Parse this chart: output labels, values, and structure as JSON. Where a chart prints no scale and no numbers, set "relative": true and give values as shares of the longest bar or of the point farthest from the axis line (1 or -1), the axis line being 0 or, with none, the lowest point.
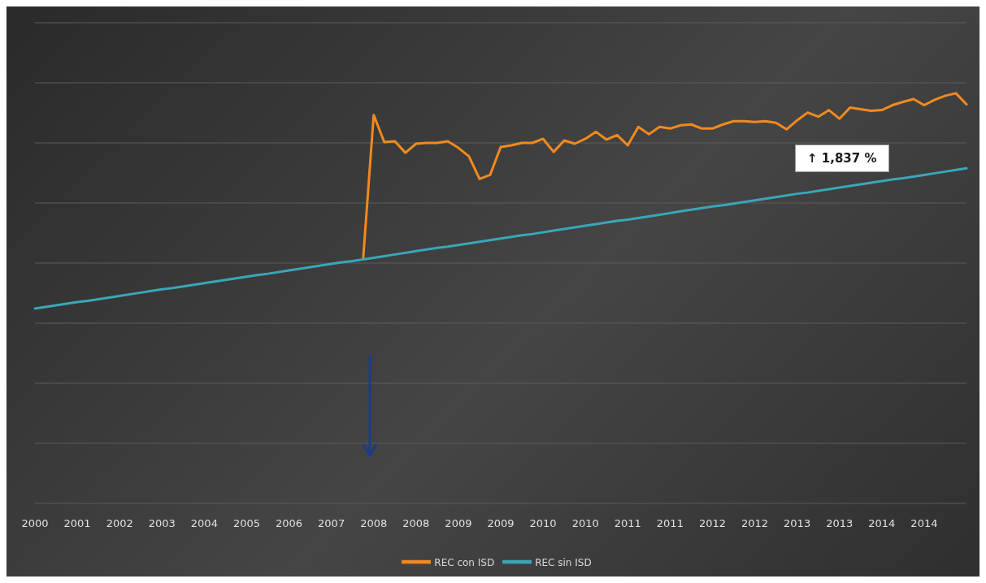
{
  "chart_data": {
    "type": "line",
    "relative": true,
    "grid": "y",
    "legend": "bottom",
    "marker": "none",
    "line_style": "solid",
    "annotations": [
      "↑ 1,837 %"
    ],
    "categories": [
      "2000",
      null,
      null,
      null,
      "2001",
      null,
      null,
      null,
      "2002",
      null,
      null,
      null,
      "2003",
      null,
      null,
      null,
      "2004",
      null,
      null,
      null,
      "2005",
      null,
      null,
      null,
      "2006",
      null,
      null,
      null,
      "2007",
      null,
      null,
      null,
      "2008",
      null,
      null,
      null,
      "2008",
      null,
      null,
      null,
      "2009",
      null,
      null,
      null,
      "2009",
      null,
      null,
      null,
      "2010",
      null,
      null,
      null,
      "2010",
      null,
      null,
      null,
      "2011",
      null,
      null,
      null,
      "2011",
      null,
      null,
      null,
      "2012",
      null,
      null,
      null,
      "2012",
      null,
      null,
      null,
      "2013",
      null,
      null,
      null,
      "2013",
      null,
      null,
      null,
      "2014",
      null,
      null,
      null,
      "2014",
      null,
      null,
      null,
      null
    ],
    "series": [
      {
        "name": "REC con ISD",
        "color": "#f28a1e",
        "values": [
          null,
          null,
          null,
          null,
          null,
          null,
          null,
          null,
          null,
          null,
          null,
          null,
          null,
          null,
          null,
          null,
          null,
          null,
          null,
          null,
          null,
          null,
          null,
          null,
          null,
          null,
          null,
          null,
          null,
          null,
          null,
          0.595,
          0.947,
          0.881,
          0.883,
          0.855,
          0.877,
          0.879,
          0.879,
          0.883,
          0.867,
          0.846,
          0.791,
          0.801,
          0.869,
          0.873,
          0.879,
          0.879,
          0.889,
          0.857,
          0.885,
          0.877,
          0.889,
          0.906,
          0.887,
          0.898,
          0.873,
          0.918,
          0.9,
          0.918,
          0.914,
          0.922,
          0.924,
          0.914,
          0.914,
          0.924,
          0.932,
          0.932,
          0.93,
          0.932,
          0.928,
          0.912,
          0.934,
          0.953,
          0.943,
          0.959,
          0.938,
          0.965,
          0.961,
          0.957,
          0.959,
          0.971,
          0.979,
          0.986,
          0.971,
          0.984,
          0.994,
          1,
          0.973
        ]
      },
      {
        "name": "REC sin ISD",
        "color": "#3aa6b9",
        "values": [
          0.475,
          0.479,
          0.483,
          0.487,
          0.491,
          0.494,
          0.498,
          0.502,
          0.506,
          0.51,
          0.514,
          0.518,
          0.522,
          0.525,
          0.529,
          0.533,
          0.537,
          0.541,
          0.545,
          0.549,
          0.553,
          0.557,
          0.56,
          0.564,
          0.568,
          0.572,
          0.576,
          0.58,
          0.584,
          0.588,
          0.591,
          0.595,
          0.599,
          0.603,
          0.607,
          0.611,
          0.615,
          0.619,
          0.623,
          0.626,
          0.63,
          0.634,
          0.638,
          0.642,
          0.646,
          0.65,
          0.654,
          0.657,
          0.661,
          0.665,
          0.669,
          0.673,
          0.677,
          0.681,
          0.685,
          0.689,
          0.692,
          0.696,
          0.7,
          0.704,
          0.708,
          0.712,
          0.716,
          0.72,
          0.724,
          0.727,
          0.731,
          0.735,
          0.739,
          0.743,
          0.747,
          0.751,
          0.755,
          0.758,
          0.762,
          0.766,
          0.77,
          0.774,
          0.778,
          0.782,
          0.786,
          0.79,
          0.793,
          0.797,
          0.801,
          0.805,
          0.809,
          0.813,
          0.817
        ]
      }
    ]
  }
}
